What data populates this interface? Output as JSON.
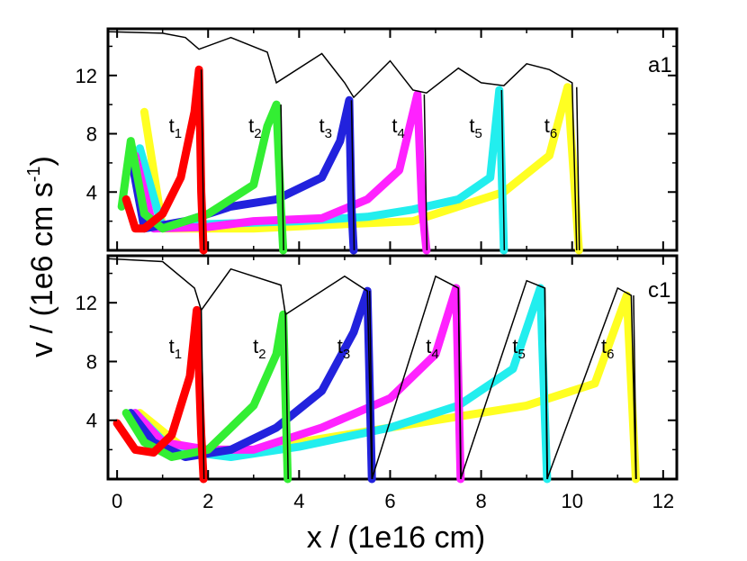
{
  "chart_data": {
    "type": "line",
    "xlabel": "x / (1e16 cm)",
    "ylabel": "v / (1e6 cm s",
    "ylabel_sup": "-1",
    "ylabel_close": ")",
    "xlim": [
      -0.2,
      12.3
    ],
    "x_ticks": [
      0,
      2,
      4,
      6,
      8,
      10,
      12
    ],
    "x_tick_labels": [
      "0",
      "2",
      "4",
      "6",
      "8",
      "10",
      "12"
    ],
    "y_ticks": [
      4,
      8,
      12
    ],
    "y_tick_labels": [
      "4",
      "8",
      "12"
    ],
    "grid": false,
    "legend": "none",
    "colors": {
      "t1": "#ff0000",
      "t2": "#33ee33",
      "t3": "#2222dd",
      "t4": "#ff22ff",
      "t5": "#22eeee",
      "t6": "#ffff22",
      "envelope": "#000000"
    },
    "panels": [
      {
        "label": "a1",
        "ylim": [
          0,
          15.2
        ],
        "times": [
          {
            "label": "t",
            "sub": "1",
            "series": "t1",
            "front_x": 1.85,
            "peak_v": 12.4,
            "x": [
              0.2,
              0.4,
              0.6,
              1.0,
              1.4,
              1.7,
              1.8,
              1.85,
              1.9
            ],
            "y": [
              3.5,
              1.5,
              1.5,
              2.5,
              5.0,
              9.5,
              12.4,
              4.0,
              0.0
            ]
          },
          {
            "label": "t",
            "sub": "2",
            "series": "t2",
            "front_x": 3.6,
            "peak_v": 10.0,
            "x": [
              0.1,
              0.3,
              0.6,
              1.0,
              2.0,
              3.0,
              3.3,
              3.5,
              3.6,
              3.65
            ],
            "y": [
              3.0,
              7.5,
              2.5,
              1.5,
              2.5,
              4.5,
              8.5,
              10.0,
              3.0,
              0.0
            ]
          },
          {
            "label": "t",
            "sub": "3",
            "series": "t3",
            "front_x": 5.15,
            "peak_v": 10.3,
            "x": [
              0.3,
              0.6,
              1.5,
              2.5,
              3.5,
              4.5,
              4.9,
              5.1,
              5.15,
              5.2
            ],
            "y": [
              6.5,
              1.5,
              2.0,
              3.0,
              3.5,
              5.0,
              7.5,
              10.3,
              3.0,
              0.0
            ]
          },
          {
            "label": "t",
            "sub": "4",
            "series": "t4",
            "front_x": 6.75,
            "peak_v": 10.7,
            "x": [
              0.4,
              0.8,
              2.0,
              3.0,
              4.5,
              5.5,
              6.2,
              6.6,
              6.7,
              6.8
            ],
            "y": [
              6.5,
              1.5,
              1.6,
              2.0,
              2.2,
              3.5,
              5.5,
              10.7,
              3.0,
              0.0
            ]
          },
          {
            "label": "t",
            "sub": "5",
            "series": "t5",
            "front_x": 8.45,
            "peak_v": 11.0,
            "x": [
              0.5,
              1.0,
              2.0,
              4.0,
              5.5,
              6.5,
              7.5,
              8.2,
              8.4,
              8.5
            ],
            "y": [
              7.0,
              1.5,
              1.8,
              2.0,
              2.3,
              2.8,
              3.5,
              5.0,
              11.0,
              0.0
            ]
          },
          {
            "label": "t",
            "sub": "6",
            "series": "t6",
            "front_x": 10.1,
            "peak_v": 11.2,
            "x": [
              0.6,
              1.0,
              3.0,
              5.0,
              6.5,
              7.5,
              8.5,
              9.5,
              9.9,
              10.15
            ],
            "y": [
              9.5,
              1.5,
              1.5,
              1.8,
              2.0,
              3.0,
              4.0,
              6.5,
              11.2,
              0.0
            ]
          }
        ],
        "envelope": {
          "x": [
            -0.2,
            1.0,
            1.5,
            1.8,
            2.5,
            3.3,
            3.5,
            4.5,
            5.0,
            5.2,
            6.0,
            6.5,
            6.8,
            7.5,
            8.0,
            8.5,
            9.0,
            9.5,
            10.0,
            10.1
          ],
          "y": [
            15.0,
            14.9,
            14.6,
            13.8,
            14.6,
            13.6,
            11.5,
            13.5,
            11.5,
            10.5,
            13.0,
            11.0,
            10.8,
            12.5,
            11.5,
            11.3,
            12.8,
            12.4,
            11.5,
            0.0
          ]
        }
      },
      {
        "label": "c1",
        "ylim": [
          0,
          15.2
        ],
        "times": [
          {
            "label": "t",
            "sub": "1",
            "series": "t1",
            "front_x": 1.85,
            "peak_v": 11.5,
            "x": [
              0.0,
              0.4,
              0.8,
              1.2,
              1.6,
              1.75,
              1.85,
              1.9
            ],
            "y": [
              3.8,
              2.0,
              1.8,
              3.0,
              7.0,
              11.5,
              3.0,
              0.0
            ]
          },
          {
            "label": "t",
            "sub": "2",
            "series": "t2",
            "front_x": 3.7,
            "peak_v": 11.2,
            "x": [
              0.2,
              0.6,
              1.2,
              2.0,
              3.0,
              3.5,
              3.65,
              3.75
            ],
            "y": [
              4.5,
              2.5,
              1.5,
              2.0,
              5.0,
              8.5,
              11.2,
              0.0
            ]
          },
          {
            "label": "t",
            "sub": "3",
            "series": "t3",
            "front_x": 5.55,
            "peak_v": 12.8,
            "x": [
              0.3,
              0.8,
              1.5,
              2.5,
              3.5,
              4.5,
              5.2,
              5.5,
              5.6
            ],
            "y": [
              4.5,
              2.5,
              1.5,
              2.0,
              3.5,
              6.0,
              10.0,
              12.8,
              0.0
            ]
          },
          {
            "label": "t",
            "sub": "4",
            "series": "t4",
            "front_x": 7.5,
            "peak_v": 13.0,
            "x": [
              0.4,
              1.0,
              2.0,
              3.0,
              4.5,
              6.0,
              7.0,
              7.45,
              7.55
            ],
            "y": [
              4.5,
              2.5,
              2.0,
              2.0,
              3.5,
              5.5,
              8.5,
              13.0,
              0.0
            ]
          },
          {
            "label": "t",
            "sub": "5",
            "series": "t5",
            "front_x": 9.4,
            "peak_v": 13.0,
            "x": [
              0.4,
              1.2,
              2.5,
              4.0,
              6.0,
              7.5,
              8.7,
              9.3,
              9.45
            ],
            "y": [
              4.5,
              2.0,
              1.5,
              2.2,
              3.5,
              5.0,
              7.5,
              13.0,
              0.0
            ]
          },
          {
            "label": "t",
            "sub": "6",
            "series": "t6",
            "front_x": 11.35,
            "peak_v": 12.5,
            "x": [
              0.5,
              1.5,
              3.0,
              5.0,
              7.0,
              9.0,
              10.5,
              11.2,
              11.4
            ],
            "y": [
              4.5,
              2.0,
              2.0,
              3.0,
              4.0,
              5.0,
              6.5,
              12.5,
              0.0
            ]
          }
        ],
        "envelope": {
          "x": [
            -0.2,
            1.0,
            1.7,
            1.85,
            2.5,
            3.6,
            3.7,
            5.0,
            5.5,
            5.6,
            7.0,
            7.5,
            7.55,
            9.0,
            9.4,
            9.45,
            11.0,
            11.3,
            11.4
          ],
          "y": [
            15.0,
            14.8,
            13.0,
            11.5,
            14.3,
            13.2,
            11.2,
            13.8,
            12.8,
            0.0,
            13.8,
            13.0,
            0.0,
            13.5,
            13.0,
            0.0,
            13.0,
            12.5,
            0.0
          ]
        }
      }
    ]
  }
}
